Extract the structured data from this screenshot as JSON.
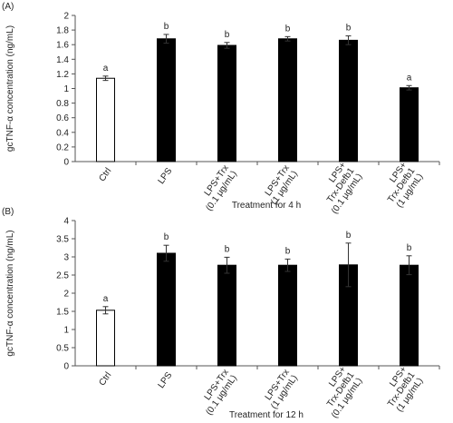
{
  "chart_data": [
    {
      "type": "bar",
      "panel_label": "(A)",
      "ylabel": "gcTNF-α concentration (ng/mL)",
      "xlabel": "Treatment for 4 h",
      "categories": [
        [
          "Ctrl"
        ],
        [
          "LPS"
        ],
        [
          "LPS+Trx",
          "(0.1 μg/mL)"
        ],
        [
          "LPS+Trx",
          "(1 μg/mL)"
        ],
        [
          "LPS+",
          "Trx-Defb1",
          "(0.1 μg/mL)"
        ],
        [
          "LPS+",
          "Trx-Defb1",
          "(1 μg/mL)"
        ]
      ],
      "values": [
        1.14,
        1.68,
        1.59,
        1.68,
        1.66,
        1.01
      ],
      "errors": [
        0.03,
        0.06,
        0.04,
        0.03,
        0.06,
        0.03
      ],
      "annotations": [
        "a",
        "b",
        "b",
        "b",
        "b",
        "a"
      ],
      "colors": [
        "#ffffff",
        "#000000",
        "#000000",
        "#000000",
        "#000000",
        "#000000"
      ],
      "edge_color": "#000000",
      "ylim": [
        0,
        2
      ],
      "yticks": [
        0,
        0.2,
        0.4,
        0.6,
        0.8,
        1,
        1.2,
        1.4,
        1.6,
        1.8,
        2
      ]
    },
    {
      "type": "bar",
      "panel_label": "(B)",
      "ylabel": "gcTNF-α concentration (ng/mL)",
      "xlabel": "Treatment for 12 h",
      "categories": [
        [
          "Ctrl"
        ],
        [
          "LPS"
        ],
        [
          "LPS+Trx",
          "(0.1 μg/mL)"
        ],
        [
          "LPS+Trx",
          "(1 μg/mL)"
        ],
        [
          "LPS+",
          "Trx-Defb1",
          "(0.1 μg/mL)"
        ],
        [
          "LPS+",
          "Trx-Defb1",
          "(1 μg/mL)"
        ]
      ],
      "values": [
        1.53,
        3.1,
        2.77,
        2.77,
        2.78,
        2.77
      ],
      "errors": [
        0.1,
        0.22,
        0.22,
        0.17,
        0.6,
        0.26
      ],
      "annotations": [
        "a",
        "b",
        "b",
        "b",
        "b",
        "b"
      ],
      "colors": [
        "#ffffff",
        "#000000",
        "#000000",
        "#000000",
        "#000000",
        "#000000"
      ],
      "edge_color": "#000000",
      "ylim": [
        0,
        4
      ],
      "yticks": [
        0,
        0.5,
        1,
        1.5,
        2,
        2.5,
        3,
        3.5,
        4
      ]
    }
  ]
}
